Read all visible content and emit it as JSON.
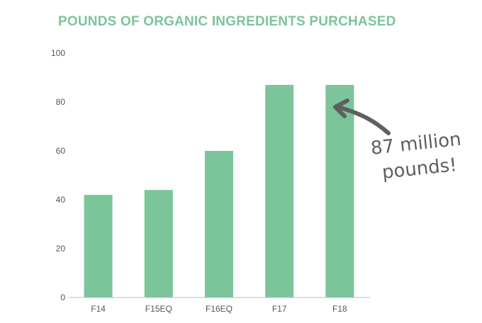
{
  "colors": {
    "accent": "#7cc49a",
    "axis": "#bdbdbd",
    "annotation": "#5f5f5f"
  },
  "chart_data": {
    "type": "bar",
    "title": "POUNDS OF ORGANIC INGREDIENTS PURCHASED",
    "categories": [
      "F14",
      "F15EQ",
      "F16EQ",
      "F17",
      "F18"
    ],
    "values": [
      42,
      44,
      60,
      87,
      87
    ],
    "ylim": [
      0,
      100
    ],
    "yticks": [
      0,
      20,
      40,
      60,
      80,
      100
    ],
    "grid": false,
    "annotation": {
      "lines": [
        "87 million",
        "pounds!"
      ],
      "target_category": "F18"
    }
  }
}
